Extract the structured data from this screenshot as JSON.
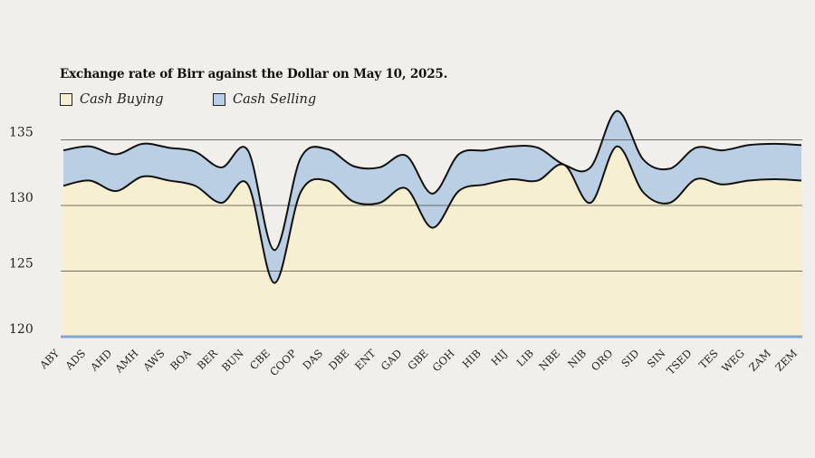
{
  "chart_data": {
    "type": "area",
    "title": "Exchange rate of Birr against the Dollar on May 10, 2025.",
    "categories": [
      "ABY",
      "ADS",
      "AHD",
      "AMH",
      "AWS",
      "BOA",
      "BER",
      "BUN",
      "CBE",
      "COOP",
      "DAS",
      "DBE",
      "ENT",
      "GAD",
      "GBE",
      "GOH",
      "HIB",
      "HIJ",
      "LIB",
      "NBE",
      "NIB",
      "ORO",
      "SID",
      "SIN",
      "TSED",
      "TES",
      "WEG",
      "ZAM",
      "ZEM"
    ],
    "series": [
      {
        "name": "Cash Buying",
        "color": "#f7efd2",
        "values": [
          131.5,
          131.9,
          131.1,
          132.2,
          131.9,
          131.5,
          130.2,
          131.6,
          124.1,
          131.0,
          131.9,
          130.3,
          130.2,
          131.3,
          128.3,
          131.1,
          131.6,
          132.0,
          131.9,
          133.1,
          130.2,
          134.5,
          131.0,
          130.2,
          132.0,
          131.6,
          131.9,
          132.0,
          131.9
        ]
      },
      {
        "name": "Cash Selling",
        "color": "#bacfe3",
        "values": [
          134.2,
          134.5,
          133.9,
          134.7,
          134.4,
          134.1,
          132.9,
          134.2,
          126.6,
          133.6,
          134.3,
          133.0,
          132.9,
          133.8,
          130.9,
          133.9,
          134.2,
          134.5,
          134.4,
          133.1,
          132.9,
          137.2,
          133.5,
          132.8,
          134.4,
          134.2,
          134.6,
          134.7,
          134.6
        ]
      }
    ],
    "yticks": [
      120,
      125,
      130,
      135
    ],
    "ylim": [
      120,
      136.5
    ],
    "grid": true,
    "legend_position": "top-left"
  }
}
